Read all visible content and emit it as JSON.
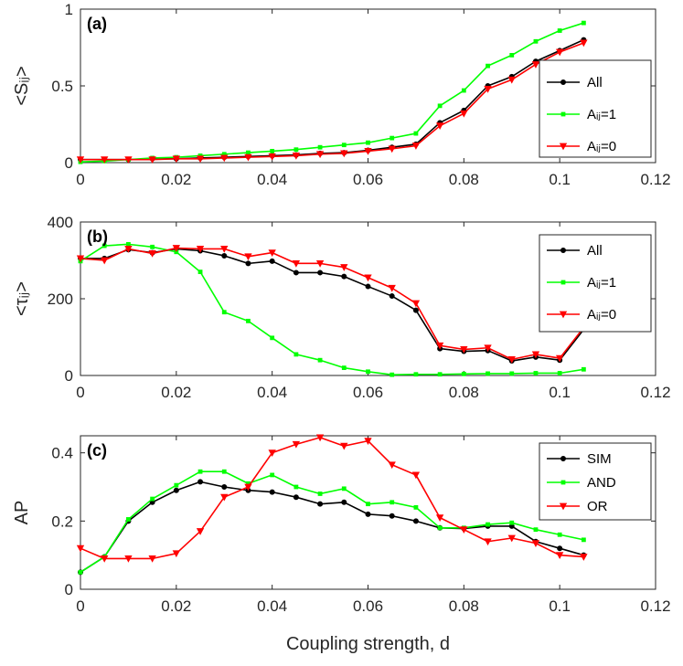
{
  "colors": {
    "black": "#000000",
    "green": "#00ff00",
    "red": "#ff0000"
  },
  "chart_data": [
    {
      "type": "line",
      "panel_label": "(a)",
      "ylabel": "<Sᵢⱼ>",
      "xlabel": "",
      "xlim": [
        0,
        0.12
      ],
      "ylim": [
        0,
        1
      ],
      "xticks": [
        "0",
        "0.02",
        "0.04",
        "0.06",
        "0.08",
        "0.1",
        "0.12"
      ],
      "yticks": [
        "0",
        "0.5",
        "1"
      ],
      "ytick_values": [
        0,
        0.5,
        1
      ],
      "legend": "right",
      "x": [
        0,
        0.005,
        0.01,
        0.015,
        0.02,
        0.025,
        0.03,
        0.035,
        0.04,
        0.045,
        0.05,
        0.055,
        0.06,
        0.065,
        0.07,
        0.075,
        0.08,
        0.085,
        0.09,
        0.095,
        0.1,
        0.105
      ],
      "series": [
        {
          "name": "All",
          "color": "#000000",
          "marker": "circle",
          "values": [
            0.02,
            0.02,
            0.02,
            0.025,
            0.025,
            0.03,
            0.035,
            0.04,
            0.045,
            0.05,
            0.06,
            0.065,
            0.08,
            0.1,
            0.12,
            0.26,
            0.34,
            0.5,
            0.56,
            0.66,
            0.73,
            0.8
          ]
        },
        {
          "name": "Aᵢⱼ=1",
          "color": "#00ff00",
          "marker": "square",
          "values": [
            0.005,
            0.01,
            0.02,
            0.03,
            0.035,
            0.045,
            0.055,
            0.065,
            0.075,
            0.085,
            0.1,
            0.115,
            0.13,
            0.16,
            0.19,
            0.37,
            0.47,
            0.63,
            0.7,
            0.79,
            0.86,
            0.91
          ]
        },
        {
          "name": "Aᵢⱼ=0",
          "color": "#ff0000",
          "marker": "triangle-down",
          "values": [
            0.02,
            0.02,
            0.02,
            0.02,
            0.025,
            0.025,
            0.03,
            0.035,
            0.04,
            0.045,
            0.055,
            0.06,
            0.075,
            0.09,
            0.11,
            0.24,
            0.32,
            0.48,
            0.54,
            0.64,
            0.72,
            0.78
          ]
        }
      ]
    },
    {
      "type": "line",
      "panel_label": "(b)",
      "ylabel": "<τᵢⱼ>",
      "xlabel": "",
      "xlim": [
        0,
        0.12
      ],
      "ylim": [
        0,
        400
      ],
      "xticks": [
        "0",
        "0.02",
        "0.04",
        "0.06",
        "0.08",
        "0.1",
        "0.12"
      ],
      "yticks": [
        "0",
        "200",
        "400"
      ],
      "ytick_values": [
        0,
        200,
        400
      ],
      "legend": "right",
      "x": [
        0,
        0.005,
        0.01,
        0.015,
        0.02,
        0.025,
        0.03,
        0.035,
        0.04,
        0.045,
        0.05,
        0.055,
        0.06,
        0.065,
        0.07,
        0.075,
        0.08,
        0.085,
        0.09,
        0.095,
        0.1,
        0.105
      ],
      "series": [
        {
          "name": "All",
          "color": "#000000",
          "marker": "circle",
          "values": [
            305,
            305,
            328,
            320,
            330,
            325,
            312,
            292,
            298,
            268,
            268,
            258,
            232,
            207,
            170,
            70,
            63,
            65,
            38,
            48,
            40,
            120
          ]
        },
        {
          "name": "Aᵢⱼ=1",
          "color": "#00ff00",
          "marker": "square",
          "values": [
            298,
            338,
            342,
            335,
            322,
            270,
            165,
            142,
            98,
            55,
            40,
            20,
            10,
            2,
            3,
            3,
            4,
            5,
            5,
            6,
            6,
            16
          ]
        },
        {
          "name": "Aᵢⱼ=0",
          "color": "#ff0000",
          "marker": "triangle-down",
          "values": [
            305,
            300,
            330,
            318,
            332,
            330,
            330,
            310,
            320,
            292,
            292,
            282,
            255,
            228,
            188,
            78,
            68,
            72,
            42,
            55,
            45,
            125
          ]
        }
      ]
    },
    {
      "type": "line",
      "panel_label": "(c)",
      "ylabel": "AP",
      "xlabel": "Coupling strength, d",
      "xlim": [
        0,
        0.12
      ],
      "ylim": [
        0,
        0.45
      ],
      "xticks": [
        "0",
        "0.02",
        "0.04",
        "0.06",
        "0.08",
        "0.1",
        "0.12"
      ],
      "yticks": [
        "0",
        "0.2",
        "0.4"
      ],
      "ytick_values": [
        0,
        0.2,
        0.4
      ],
      "legend": "top-right",
      "x": [
        0,
        0.005,
        0.01,
        0.015,
        0.02,
        0.025,
        0.03,
        0.035,
        0.04,
        0.045,
        0.05,
        0.055,
        0.06,
        0.065,
        0.07,
        0.075,
        0.08,
        0.085,
        0.09,
        0.095,
        0.1,
        0.105
      ],
      "series": [
        {
          "name": "SIM",
          "color": "#000000",
          "marker": "circle",
          "values": [
            0.05,
            0.095,
            0.2,
            0.255,
            0.29,
            0.315,
            0.3,
            0.29,
            0.285,
            0.27,
            0.25,
            0.255,
            0.22,
            0.215,
            0.2,
            0.18,
            0.178,
            0.185,
            0.185,
            0.14,
            0.12,
            0.1
          ]
        },
        {
          "name": "AND",
          "color": "#00ff00",
          "marker": "square",
          "values": [
            0.05,
            0.095,
            0.205,
            0.265,
            0.305,
            0.345,
            0.345,
            0.31,
            0.335,
            0.3,
            0.28,
            0.295,
            0.25,
            0.255,
            0.24,
            0.18,
            0.18,
            0.19,
            0.195,
            0.175,
            0.16,
            0.145
          ]
        },
        {
          "name": "OR",
          "color": "#ff0000",
          "marker": "triangle-down",
          "values": [
            0.12,
            0.09,
            0.09,
            0.09,
            0.105,
            0.17,
            0.27,
            0.3,
            0.4,
            0.425,
            0.445,
            0.42,
            0.435,
            0.365,
            0.335,
            0.21,
            0.175,
            0.14,
            0.15,
            0.135,
            0.1,
            0.095
          ]
        }
      ]
    }
  ]
}
